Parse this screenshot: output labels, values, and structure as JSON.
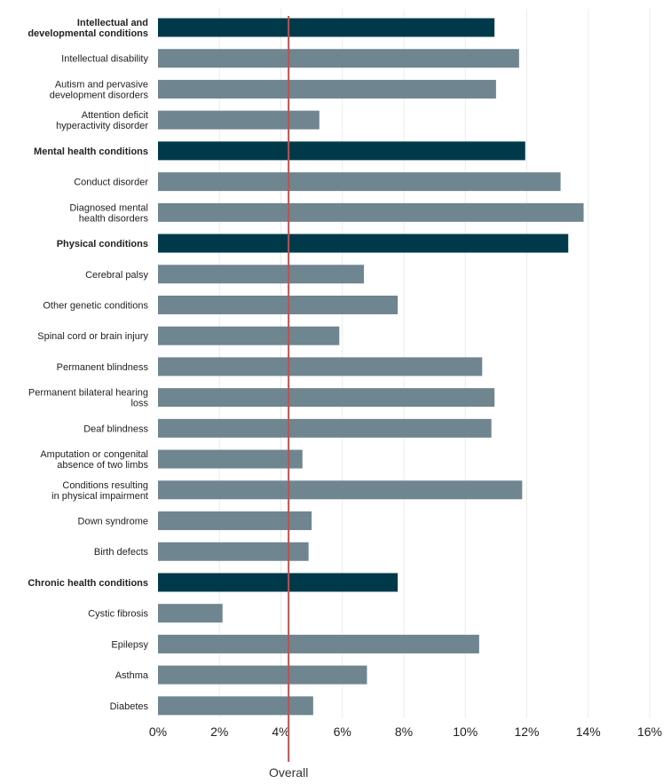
{
  "chart_data": {
    "type": "bar",
    "orientation": "horizontal",
    "title": "",
    "xlabel": "",
    "ylabel": "",
    "xlim": [
      0,
      16
    ],
    "x_ticks": [
      0,
      2,
      4,
      6,
      8,
      10,
      12,
      14,
      16
    ],
    "x_tick_labels": [
      "0%",
      "2%",
      "4%",
      "6%",
      "8%",
      "10%",
      "12%",
      "14%",
      "16%"
    ],
    "grid": true,
    "colors": {
      "group": "#003a4a",
      "item": "#6f8590",
      "reference": "#b85450",
      "grid": "#ebebeb"
    },
    "reference_line": {
      "label": "Overall",
      "value": 4.25
    },
    "categories": [
      {
        "label_lines": [
          "Intellectual and",
          "developmental conditions"
        ],
        "value": 10.95,
        "group": true
      },
      {
        "label_lines": [
          "Intellectual disability"
        ],
        "value": 11.75,
        "group": false
      },
      {
        "label_lines": [
          "Autism and pervasive",
          "development disorders"
        ],
        "value": 11.0,
        "group": false
      },
      {
        "label_lines": [
          "Attention deficit",
          "hyperactivity disorder"
        ],
        "value": 5.25,
        "group": false
      },
      {
        "label_lines": [
          "Mental health conditions"
        ],
        "value": 11.95,
        "group": true
      },
      {
        "label_lines": [
          "Conduct disorder"
        ],
        "value": 13.1,
        "group": false
      },
      {
        "label_lines": [
          "Diagnosed mental",
          "health disorders"
        ],
        "value": 13.85,
        "group": false
      },
      {
        "label_lines": [
          "Physical conditions"
        ],
        "value": 13.35,
        "group": true
      },
      {
        "label_lines": [
          "Cerebral palsy"
        ],
        "value": 6.7,
        "group": false
      },
      {
        "label_lines": [
          "Other genetic conditions"
        ],
        "value": 7.8,
        "group": false
      },
      {
        "label_lines": [
          "Spinal cord or brain injury"
        ],
        "value": 5.9,
        "group": false
      },
      {
        "label_lines": [
          "Permanent blindness"
        ],
        "value": 10.55,
        "group": false
      },
      {
        "label_lines": [
          "Permanent bilateral hearing",
          "loss"
        ],
        "value": 10.95,
        "group": false
      },
      {
        "label_lines": [
          "Deaf blindness"
        ],
        "value": 10.85,
        "group": false
      },
      {
        "label_lines": [
          "Amputation or congenital",
          "absence of two limbs"
        ],
        "value": 4.7,
        "group": false
      },
      {
        "label_lines": [
          "Conditions resulting",
          "in physical impairment"
        ],
        "value": 11.85,
        "group": false
      },
      {
        "label_lines": [
          "Down syndrome"
        ],
        "value": 5.0,
        "group": false
      },
      {
        "label_lines": [
          "Birth defects"
        ],
        "value": 4.9,
        "group": false
      },
      {
        "label_lines": [
          "Chronic health conditions"
        ],
        "value": 7.8,
        "group": true
      },
      {
        "label_lines": [
          "Cystic fibrosis"
        ],
        "value": 2.1,
        "group": false
      },
      {
        "label_lines": [
          "Epilepsy"
        ],
        "value": 10.45,
        "group": false
      },
      {
        "label_lines": [
          "Asthma"
        ],
        "value": 6.8,
        "group": false
      },
      {
        "label_lines": [
          "Diabetes"
        ],
        "value": 5.05,
        "group": false
      }
    ]
  }
}
